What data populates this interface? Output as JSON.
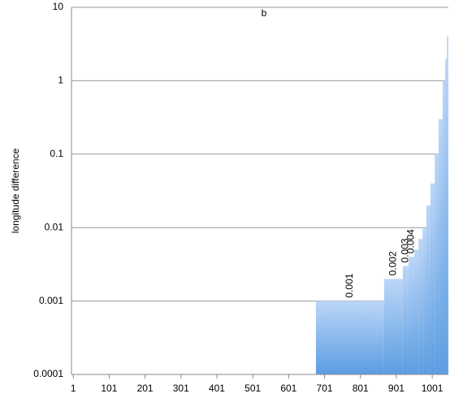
{
  "chart_data": {
    "type": "histogram",
    "title": "b",
    "ylabel": "longitude difference",
    "bins": [
      677,
      867,
      919,
      935,
      951,
      963,
      974,
      985,
      996,
      1008,
      1019,
      1030,
      1037,
      1042,
      1046
    ],
    "values": [
      0.001,
      0.002,
      0.003,
      0.004,
      0.005,
      0.007,
      0.01,
      0.02,
      0.04,
      0.1,
      0.3,
      1,
      2,
      4
    ],
    "show_value_label": [
      true,
      true,
      true,
      true,
      false,
      false,
      false,
      false,
      false,
      false,
      false,
      false,
      false,
      false
    ],
    "color_top": "#bcd6f8",
    "color_bottom": "#5b9de2",
    "xlim": [
      -4,
      1046
    ],
    "xticks": [
      1,
      101,
      201,
      301,
      401,
      501,
      601,
      701,
      801,
      901,
      1001
    ],
    "ylim": [
      0.0001,
      10
    ],
    "yticks": [
      10,
      1,
      0.1,
      0.01,
      0.001,
      0.0001
    ],
    "log_y": true,
    "grid": true
  }
}
